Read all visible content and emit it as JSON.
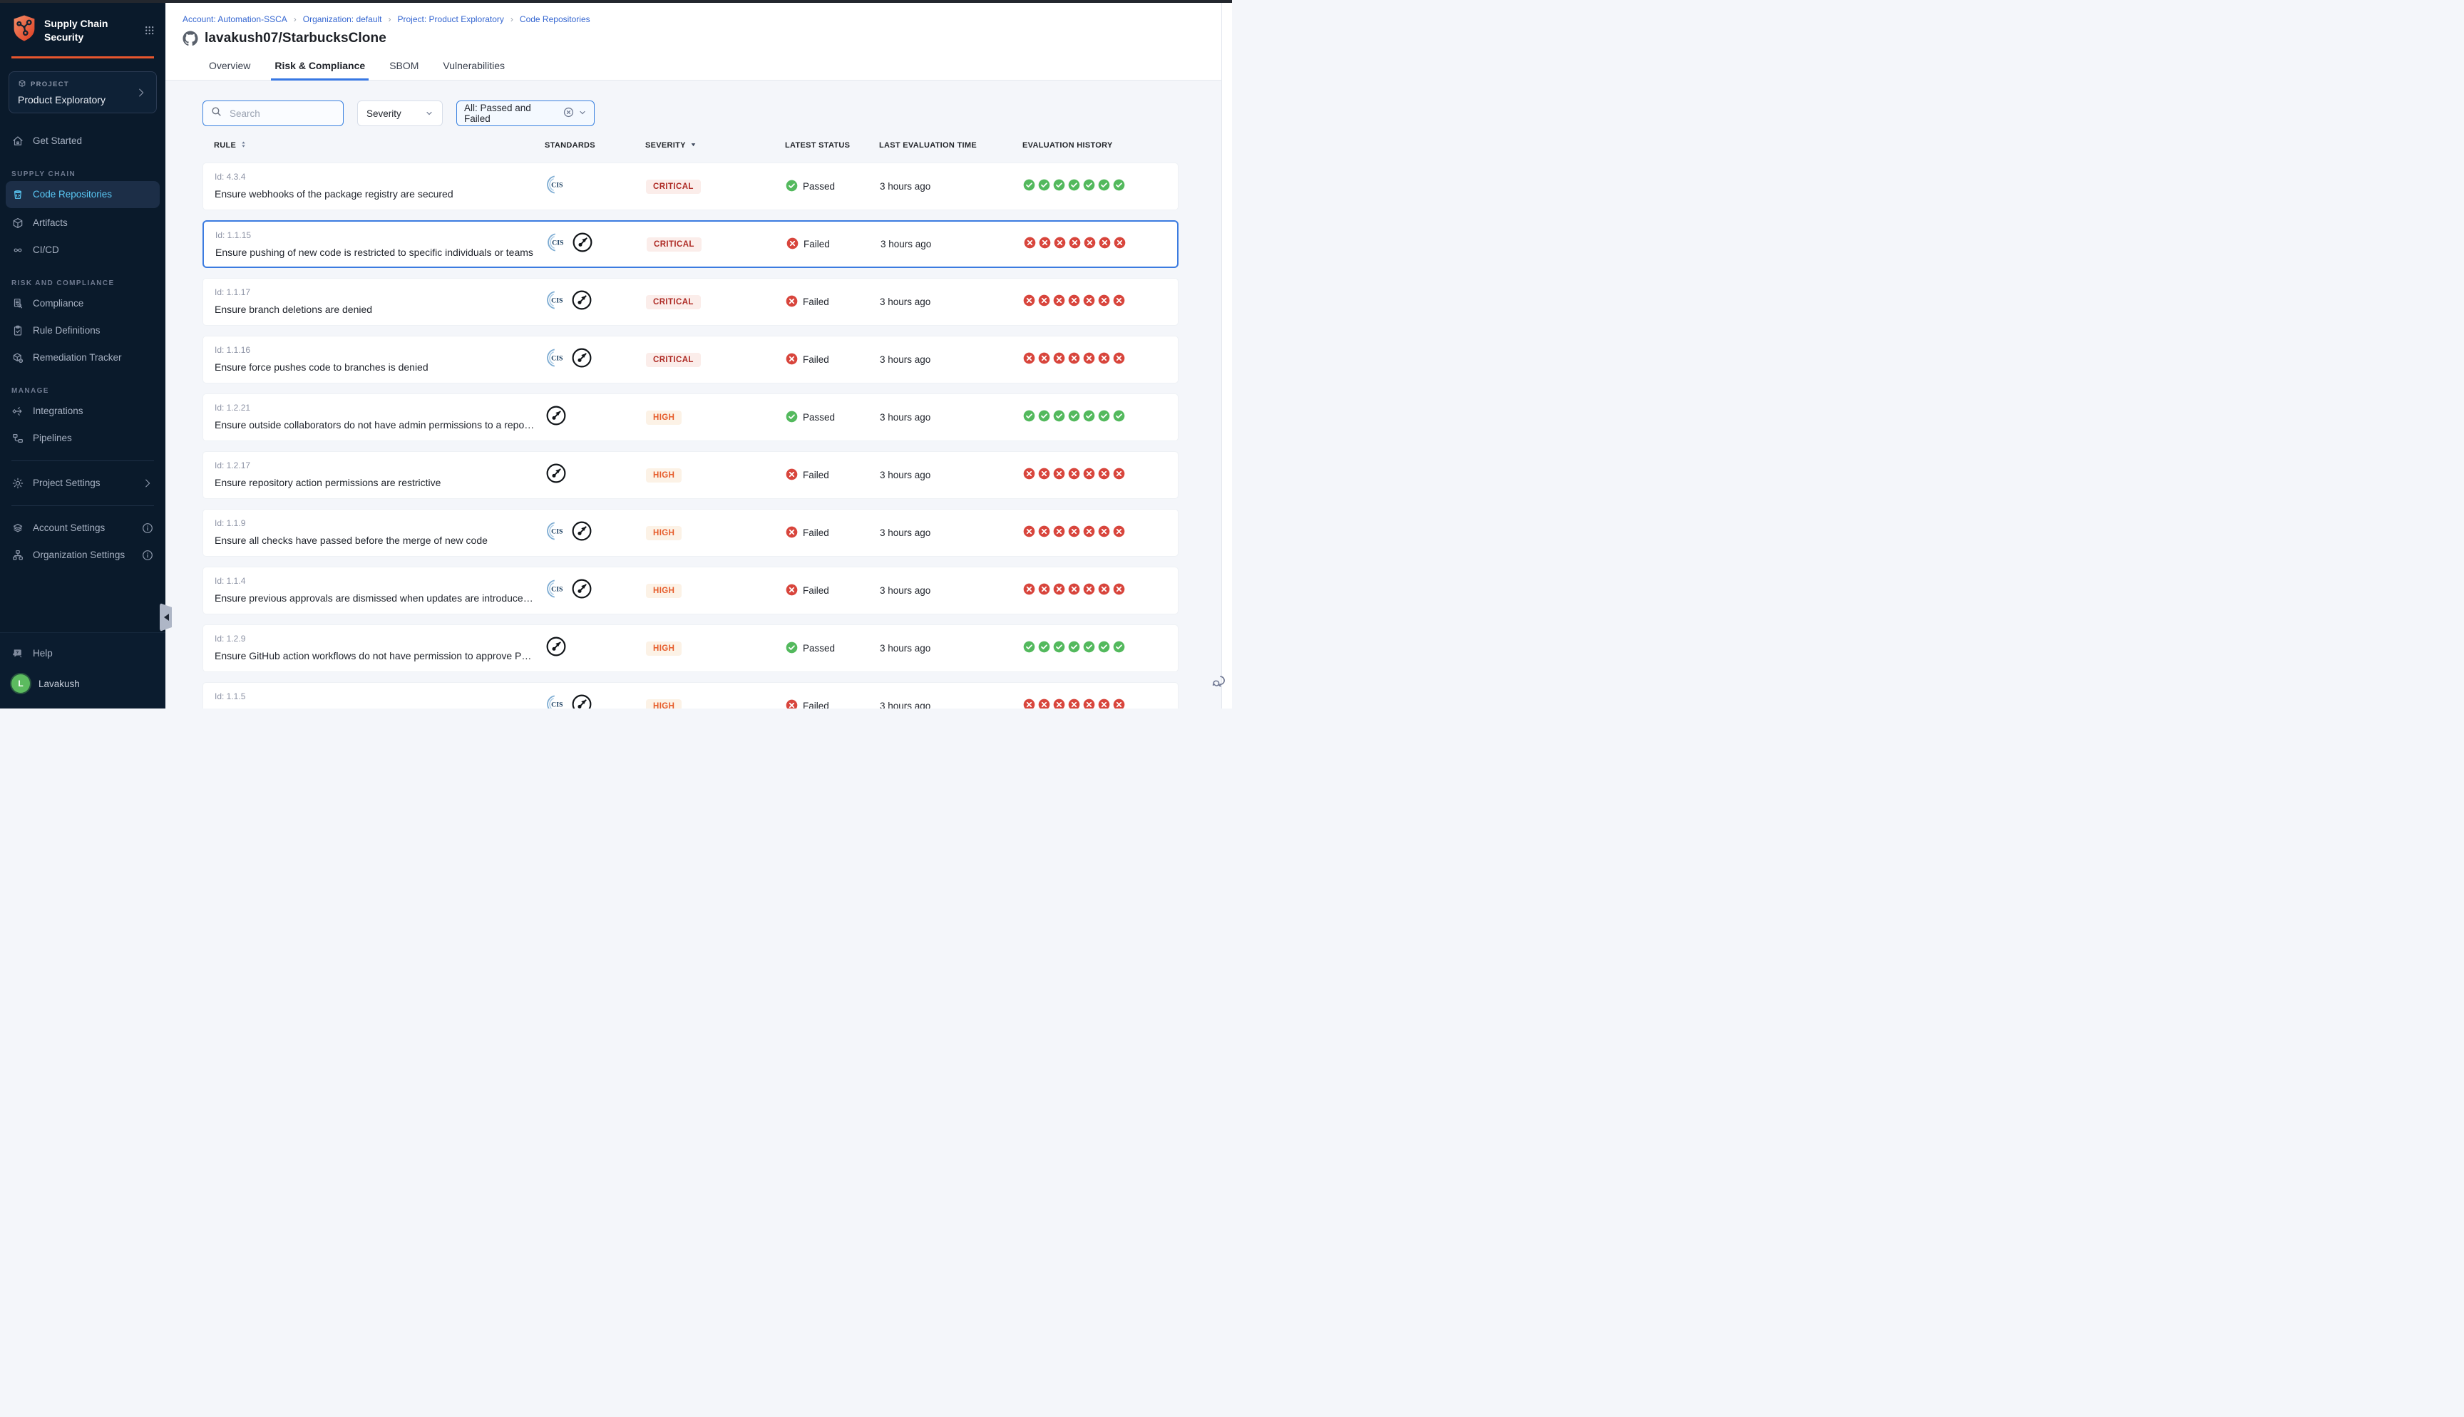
{
  "sidebar": {
    "app_title": "Supply Chain Security",
    "project_label": "PROJECT",
    "project_name": "Product Exploratory",
    "sections": [
      {
        "label": "",
        "items": [
          {
            "label": "Get Started",
            "icon": "home"
          }
        ]
      },
      {
        "label": "SUPPLY CHAIN",
        "items": [
          {
            "label": "Code Repositories",
            "icon": "repo",
            "active": true
          },
          {
            "label": "Artifacts",
            "icon": "artifacts"
          },
          {
            "label": "CI/CD",
            "icon": "cicd"
          }
        ]
      },
      {
        "label": "RISK AND COMPLIANCE",
        "items": [
          {
            "label": "Compliance",
            "icon": "compliance"
          },
          {
            "label": "Rule Definitions",
            "icon": "rules"
          },
          {
            "label": "Remediation Tracker",
            "icon": "remediation"
          }
        ]
      },
      {
        "label": "MANAGE",
        "items": [
          {
            "label": "Integrations",
            "icon": "integrations"
          },
          {
            "label": "Pipelines",
            "icon": "pipelines"
          }
        ]
      }
    ],
    "footer_items": [
      {
        "label": "Project Settings",
        "icon": "gear",
        "chevron": true
      },
      {
        "label": "Account Settings",
        "icon": "account",
        "info": true
      },
      {
        "label": "Organization Settings",
        "icon": "org",
        "info": true
      }
    ],
    "help_label": "Help",
    "user": {
      "name": "Lavakush",
      "initial": "L"
    }
  },
  "header": {
    "breadcrumbs": [
      "Account: Automation-SSCA",
      "Organization: default",
      "Project: Product Exploratory",
      "Code Repositories"
    ],
    "title": "lavakush07/StarbucksClone",
    "tabs": [
      {
        "label": "Overview",
        "active": false
      },
      {
        "label": "Risk & Compliance",
        "active": true
      },
      {
        "label": "SBOM",
        "active": false
      },
      {
        "label": "Vulnerabilities",
        "active": false
      }
    ]
  },
  "filters": {
    "search_placeholder": "Search",
    "severity_label": "Severity",
    "status_filter_label": "All: Passed and Failed"
  },
  "table": {
    "columns": [
      {
        "label": "RULE",
        "sort": "both"
      },
      {
        "label": "STANDARDS",
        "sort": ""
      },
      {
        "label": "SEVERITY",
        "sort": "desc"
      },
      {
        "label": "LATEST STATUS",
        "sort": ""
      },
      {
        "label": "LAST EVALUATION TIME",
        "sort": ""
      },
      {
        "label": "EVALUATION HISTORY",
        "sort": ""
      }
    ],
    "rows": [
      {
        "id": "Id: 4.3.4",
        "rule": "Ensure webhooks of the package registry are secured",
        "standards": [
          "CIS"
        ],
        "severity": "CRITICAL",
        "status": "Passed",
        "time": "3 hours ago",
        "history": [
          "pass",
          "pass",
          "pass",
          "pass",
          "pass",
          "pass",
          "pass"
        ],
        "selected": false
      },
      {
        "id": "Id: 1.1.15",
        "rule": "Ensure pushing of new code is restricted to specific individuals or teams",
        "standards": [
          "CIS",
          "OWASP"
        ],
        "severity": "CRITICAL",
        "status": "Failed",
        "time": "3 hours ago",
        "history": [
          "fail",
          "fail",
          "fail",
          "fail",
          "fail",
          "fail",
          "fail"
        ],
        "selected": true
      },
      {
        "id": "Id: 1.1.17",
        "rule": "Ensure branch deletions are denied",
        "standards": [
          "CIS",
          "OWASP"
        ],
        "severity": "CRITICAL",
        "status": "Failed",
        "time": "3 hours ago",
        "history": [
          "fail",
          "fail",
          "fail",
          "fail",
          "fail",
          "fail",
          "fail"
        ],
        "selected": false
      },
      {
        "id": "Id: 1.1.16",
        "rule": "Ensure force pushes code to branches is denied",
        "standards": [
          "CIS",
          "OWASP"
        ],
        "severity": "CRITICAL",
        "status": "Failed",
        "time": "3 hours ago",
        "history": [
          "fail",
          "fail",
          "fail",
          "fail",
          "fail",
          "fail",
          "fail"
        ],
        "selected": false
      },
      {
        "id": "Id: 1.2.21",
        "rule": "Ensure outside collaborators do not have admin permissions to a repository",
        "standards": [
          "OWASP"
        ],
        "severity": "HIGH",
        "status": "Passed",
        "time": "3 hours ago",
        "history": [
          "pass",
          "pass",
          "pass",
          "pass",
          "pass",
          "pass",
          "pass"
        ],
        "selected": false
      },
      {
        "id": "Id: 1.2.17",
        "rule": "Ensure repository action permissions are restrictive",
        "standards": [
          "OWASP"
        ],
        "severity": "HIGH",
        "status": "Failed",
        "time": "3 hours ago",
        "history": [
          "fail",
          "fail",
          "fail",
          "fail",
          "fail",
          "fail",
          "fail"
        ],
        "selected": false
      },
      {
        "id": "Id: 1.1.9",
        "rule": "Ensure all checks have passed before the merge of new code",
        "standards": [
          "CIS",
          "OWASP"
        ],
        "severity": "HIGH",
        "status": "Failed",
        "time": "3 hours ago",
        "history": [
          "fail",
          "fail",
          "fail",
          "fail",
          "fail",
          "fail",
          "fail"
        ],
        "selected": false
      },
      {
        "id": "Id: 1.1.4",
        "rule": "Ensure previous approvals are dismissed when updates are introduced to a cod...",
        "standards": [
          "CIS",
          "OWASP"
        ],
        "severity": "HIGH",
        "status": "Failed",
        "time": "3 hours ago",
        "history": [
          "fail",
          "fail",
          "fail",
          "fail",
          "fail",
          "fail",
          "fail"
        ],
        "selected": false
      },
      {
        "id": "Id: 1.2.9",
        "rule": "Ensure GitHub action workflows do not have permission to approve PR reviews ...",
        "standards": [
          "OWASP"
        ],
        "severity": "HIGH",
        "status": "Passed",
        "time": "3 hours ago",
        "history": [
          "pass",
          "pass",
          "pass",
          "pass",
          "pass",
          "pass",
          "pass"
        ],
        "selected": false
      },
      {
        "id": "Id: 1.1.5",
        "rule": "",
        "standards": [
          "CIS",
          "OWASP"
        ],
        "severity": "HIGH",
        "status": "Failed",
        "time": "3 hours ago",
        "history": [
          "fail",
          "fail",
          "fail",
          "fail",
          "fail",
          "fail",
          "fail"
        ],
        "selected": false
      }
    ]
  },
  "colors": {
    "accent_blue": "#3b7be0",
    "sidebar_bg": "#0a1a2b",
    "sidebar_active_text": "#5ac8f5",
    "brand_orange": "#e8562e",
    "critical_text": "#ae2b25",
    "critical_bg": "#fbedea",
    "high_text": "#e65c2b",
    "high_bg": "#fcf2e6",
    "pass_green": "#53b95d",
    "fail_red": "#d8453c",
    "link_blue": "#3667d1"
  }
}
